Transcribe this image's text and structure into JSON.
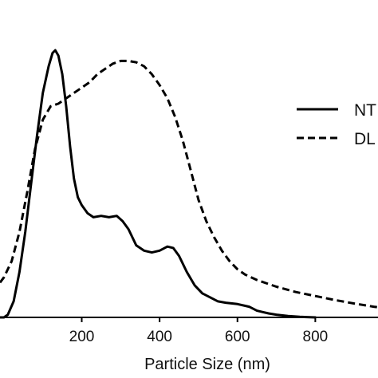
{
  "chart_data": {
    "type": "line",
    "xlabel": "Particle Size (nm)",
    "ylabel": "",
    "xlim": [
      -10,
      1000
    ],
    "ylim": [
      0,
      1.0
    ],
    "xticks": [
      200,
      400,
      600,
      800
    ],
    "tick_labels": [
      "200",
      "400",
      "600",
      "800"
    ],
    "grid": false,
    "legend_position": "right",
    "series": [
      {
        "name": "NT",
        "style": "solid",
        "color": "#000000",
        "points": [
          [
            -10,
            0.0
          ],
          [
            0,
            0.0
          ],
          [
            10,
            0.01
          ],
          [
            25,
            0.06
          ],
          [
            40,
            0.17
          ],
          [
            55,
            0.32
          ],
          [
            70,
            0.5
          ],
          [
            85,
            0.68
          ],
          [
            100,
            0.84
          ],
          [
            115,
            0.94
          ],
          [
            125,
            0.99
          ],
          [
            132,
            1.0
          ],
          [
            140,
            0.98
          ],
          [
            150,
            0.91
          ],
          [
            160,
            0.79
          ],
          [
            170,
            0.64
          ],
          [
            180,
            0.52
          ],
          [
            190,
            0.45
          ],
          [
            200,
            0.42
          ],
          [
            215,
            0.39
          ],
          [
            230,
            0.375
          ],
          [
            250,
            0.38
          ],
          [
            270,
            0.375
          ],
          [
            290,
            0.38
          ],
          [
            305,
            0.36
          ],
          [
            320,
            0.33
          ],
          [
            340,
            0.27
          ],
          [
            360,
            0.25
          ],
          [
            380,
            0.243
          ],
          [
            400,
            0.25
          ],
          [
            420,
            0.265
          ],
          [
            435,
            0.26
          ],
          [
            450,
            0.23
          ],
          [
            470,
            0.17
          ],
          [
            490,
            0.12
          ],
          [
            510,
            0.09
          ],
          [
            530,
            0.075
          ],
          [
            550,
            0.06
          ],
          [
            570,
            0.055
          ],
          [
            600,
            0.05
          ],
          [
            630,
            0.04
          ],
          [
            650,
            0.025
          ],
          [
            665,
            0.02
          ],
          [
            680,
            0.015
          ],
          [
            700,
            0.01
          ],
          [
            730,
            0.005
          ],
          [
            760,
            0.002
          ],
          [
            800,
            0.0
          ]
        ]
      },
      {
        "name": "DL",
        "style": "dashed",
        "color": "#000000",
        "points": [
          [
            -10,
            0.13
          ],
          [
            0,
            0.15
          ],
          [
            20,
            0.21
          ],
          [
            40,
            0.32
          ],
          [
            60,
            0.47
          ],
          [
            80,
            0.63
          ],
          [
            100,
            0.74
          ],
          [
            120,
            0.79
          ],
          [
            140,
            0.8
          ],
          [
            160,
            0.82
          ],
          [
            180,
            0.84
          ],
          [
            200,
            0.86
          ],
          [
            220,
            0.88
          ],
          [
            240,
            0.91
          ],
          [
            260,
            0.93
          ],
          [
            280,
            0.95
          ],
          [
            300,
            0.96
          ],
          [
            320,
            0.96
          ],
          [
            340,
            0.955
          ],
          [
            360,
            0.94
          ],
          [
            380,
            0.91
          ],
          [
            400,
            0.87
          ],
          [
            420,
            0.82
          ],
          [
            440,
            0.75
          ],
          [
            460,
            0.66
          ],
          [
            480,
            0.55
          ],
          [
            500,
            0.44
          ],
          [
            520,
            0.36
          ],
          [
            540,
            0.3
          ],
          [
            560,
            0.25
          ],
          [
            580,
            0.21
          ],
          [
            600,
            0.18
          ],
          [
            620,
            0.16
          ],
          [
            650,
            0.14
          ],
          [
            700,
            0.115
          ],
          [
            750,
            0.095
          ],
          [
            800,
            0.08
          ],
          [
            850,
            0.065
          ],
          [
            900,
            0.052
          ],
          [
            950,
            0.04
          ],
          [
            1000,
            0.03
          ]
        ]
      }
    ]
  }
}
